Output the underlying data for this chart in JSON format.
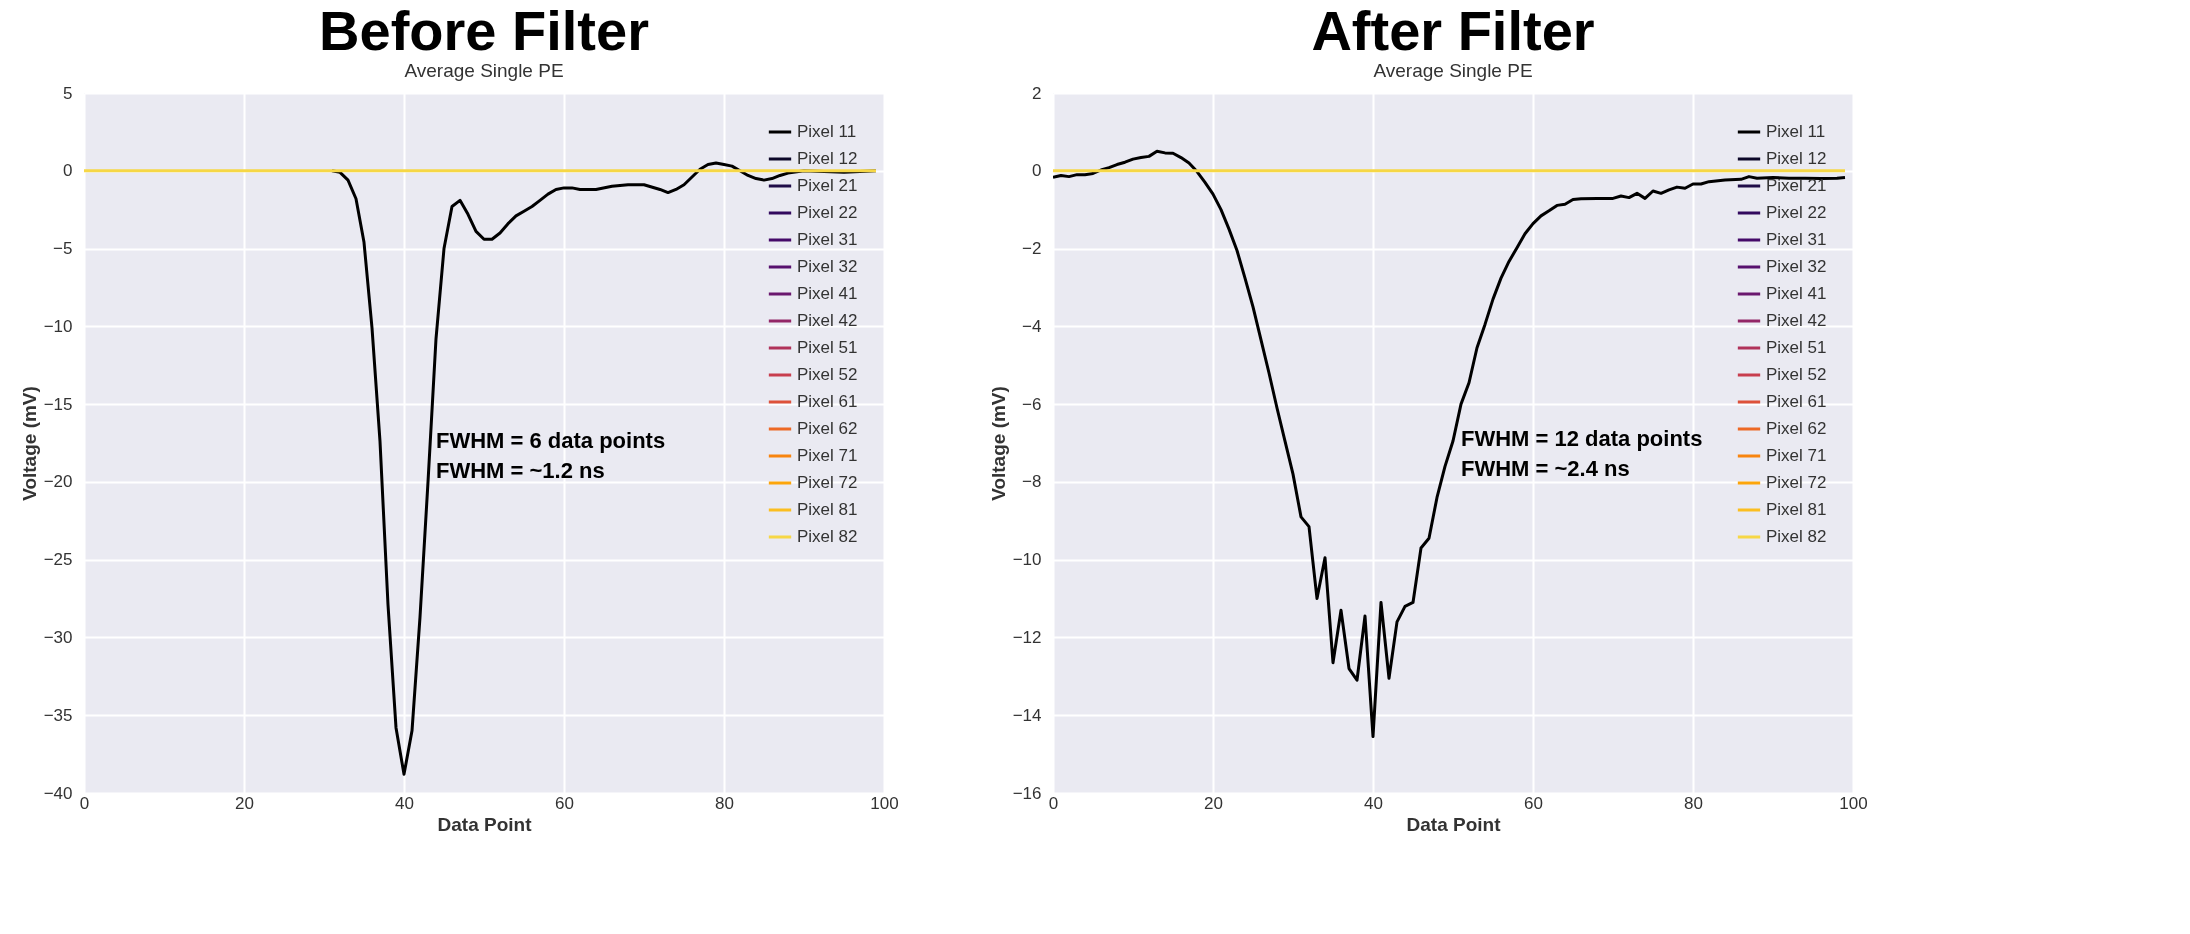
{
  "chart_data": [
    {
      "type": "line",
      "title": "Before Filter",
      "subtitle": "Average Single PE",
      "xlabel": "Data Point",
      "ylabel": "Voltage (mV)",
      "xlim": [
        0,
        100
      ],
      "xticks": [
        0,
        20,
        40,
        60,
        80,
        100
      ],
      "ylim": [
        -40,
        5
      ],
      "yticks": [
        5,
        0,
        -5,
        -10,
        -15,
        -20,
        -25,
        -30,
        -35,
        -40
      ],
      "grid": true,
      "legend": "top right",
      "annotations": [
        {
          "text": "FWHM = 6 data points\nFWHM = ~1.2 ns",
          "x": 43,
          "y": -17.4
        }
      ],
      "series": [
        {
          "name": "Pixel 11",
          "color": "#000000",
          "x": [
            31,
            32,
            33,
            34,
            35,
            36,
            37,
            38,
            39,
            40,
            41,
            42,
            43,
            44,
            45,
            46,
            47,
            48,
            49,
            50,
            51,
            52,
            53,
            54,
            55,
            56,
            57,
            58,
            59,
            60,
            61,
            62,
            64,
            66,
            68,
            70,
            72,
            73,
            74,
            75,
            76,
            77,
            78,
            79,
            80,
            81,
            82,
            83,
            84,
            85,
            86,
            87,
            88,
            90,
            95,
            99
          ],
          "values": [
            0,
            -0.1,
            -0.6,
            -1.8,
            -4.6,
            -10.1,
            -17.4,
            -27.9,
            -35.8,
            -38.8,
            -36,
            -28.7,
            -20,
            -10.8,
            -5,
            -2.3,
            -1.9,
            -2.8,
            -3.9,
            -4.4,
            -4.4,
            -4,
            -3.4,
            -2.9,
            -2.6,
            -2.3,
            -1.9,
            -1.5,
            -1.2,
            -1.1,
            -1.1,
            -1.2,
            -1.2,
            -1,
            -0.9,
            -0.9,
            -1.2,
            -1.4,
            -1.2,
            -0.9,
            -0.4,
            0.1,
            0.4,
            0.5,
            0.4,
            0.3,
            0,
            -0.3,
            -0.5,
            -0.6,
            -0.5,
            -0.3,
            -0.15,
            0,
            -0.1,
            0
          ]
        },
        {
          "name": "Pixel 12",
          "color": "#0d0829"
        },
        {
          "name": "Pixel 21",
          "color": "#1f0c48"
        },
        {
          "name": "Pixel 22",
          "color": "#320a5e"
        },
        {
          "name": "Pixel 31",
          "color": "#450a69"
        },
        {
          "name": "Pixel 32",
          "color": "#57106e"
        },
        {
          "name": "Pixel 41",
          "color": "#6a176e"
        },
        {
          "name": "Pixel 42",
          "color": "#932667"
        },
        {
          "name": "Pixel 51",
          "color": "#b0325a"
        },
        {
          "name": "Pixel 52",
          "color": "#c83e4e"
        },
        {
          "name": "Pixel 61",
          "color": "#dd513a"
        },
        {
          "name": "Pixel 62",
          "color": "#ed6925"
        },
        {
          "name": "Pixel 71",
          "color": "#f8850f"
        },
        {
          "name": "Pixel 72",
          "color": "#fca50a"
        },
        {
          "name": "Pixel 81",
          "color": "#fbbe20"
        },
        {
          "name": "Pixel 82",
          "color": "#f6d746",
          "x": [
            0,
            99
          ],
          "values": [
            0,
            0
          ]
        }
      ]
    },
    {
      "type": "line",
      "title": "After Filter",
      "subtitle": "Average Single PE",
      "xlabel": "Data Point",
      "ylabel": "Voltage (mV)",
      "xlim": [
        0,
        100
      ],
      "xticks": [
        0,
        20,
        40,
        60,
        80,
        100
      ],
      "ylim": [
        -16,
        2
      ],
      "yticks": [
        2,
        0,
        -2,
        -4,
        -6,
        -8,
        -10,
        -12,
        -14,
        -16
      ],
      "grid": true,
      "legend": "top right",
      "annotations": [
        {
          "text": "FWHM = 12 data points\nFWHM = ~2.4 ns",
          "x": 50,
          "y": -6.9
        }
      ],
      "series": [
        {
          "name": "Pixel 11",
          "color": "#000000",
          "x": [
            0,
            1,
            2,
            3,
            4,
            5,
            6,
            7,
            8,
            9,
            10,
            11,
            12,
            13,
            14,
            15,
            16,
            17,
            18,
            19,
            20,
            21,
            22,
            23,
            24,
            25,
            26,
            27,
            28,
            29,
            30,
            31,
            32,
            33,
            34,
            35,
            36,
            37,
            38,
            39,
            40,
            41,
            42,
            43,
            44,
            45,
            46,
            47,
            48,
            49,
            50,
            51,
            52,
            53,
            54,
            55,
            56,
            57,
            58,
            59,
            60,
            61,
            62,
            63,
            64,
            65,
            66,
            68,
            70,
            71,
            72,
            73,
            74,
            75,
            76,
            77,
            78,
            79,
            80,
            81,
            82,
            84,
            86,
            87,
            88,
            90,
            92,
            94,
            96,
            98,
            99
          ],
          "values": [
            -0.17,
            -0.12,
            -0.15,
            -0.1,
            -0.1,
            -0.07,
            0.02,
            0.08,
            0.16,
            0.22,
            0.3,
            0.34,
            0.37,
            0.5,
            0.46,
            0.45,
            0.34,
            0.2,
            -0.02,
            -0.3,
            -0.6,
            -1,
            -1.5,
            -2.05,
            -2.76,
            -3.5,
            -4.35,
            -5.2,
            -6.1,
            -6.95,
            -7.8,
            -8.9,
            -9.15,
            -11,
            -9.95,
            -12.65,
            -11.3,
            -12.8,
            -13.1,
            -11.45,
            -14.55,
            -11.1,
            -13.05,
            -11.6,
            -11.2,
            -11.1,
            -9.7,
            -9.45,
            -8.4,
            -7.6,
            -6.95,
            -6,
            -5.45,
            -4.55,
            -3.95,
            -3.3,
            -2.76,
            -2.33,
            -1.98,
            -1.62,
            -1.36,
            -1.16,
            -1.03,
            -0.89,
            -0.86,
            -0.74,
            -0.72,
            -0.71,
            -0.71,
            -0.65,
            -0.69,
            -0.58,
            -0.71,
            -0.52,
            -0.58,
            -0.49,
            -0.42,
            -0.45,
            -0.34,
            -0.34,
            -0.28,
            -0.24,
            -0.22,
            -0.15,
            -0.19,
            -0.17,
            -0.19,
            -0.19,
            -0.2,
            -0.19,
            -0.17
          ]
        },
        {
          "name": "Pixel 12",
          "color": "#0d0829"
        },
        {
          "name": "Pixel 21",
          "color": "#1f0c48"
        },
        {
          "name": "Pixel 22",
          "color": "#320a5e"
        },
        {
          "name": "Pixel 31",
          "color": "#450a69"
        },
        {
          "name": "Pixel 32",
          "color": "#57106e"
        },
        {
          "name": "Pixel 41",
          "color": "#6a176e"
        },
        {
          "name": "Pixel 42",
          "color": "#932667"
        },
        {
          "name": "Pixel 51",
          "color": "#b0325a"
        },
        {
          "name": "Pixel 52",
          "color": "#c83e4e"
        },
        {
          "name": "Pixel 61",
          "color": "#dd513a"
        },
        {
          "name": "Pixel 62",
          "color": "#ed6925"
        },
        {
          "name": "Pixel 71",
          "color": "#f8850f"
        },
        {
          "name": "Pixel 72",
          "color": "#fca50a"
        },
        {
          "name": "Pixel 81",
          "color": "#fbbe20"
        },
        {
          "name": "Pixel 82",
          "color": "#f6d746",
          "x": [
            0,
            99
          ],
          "values": [
            0,
            0
          ]
        }
      ]
    }
  ]
}
